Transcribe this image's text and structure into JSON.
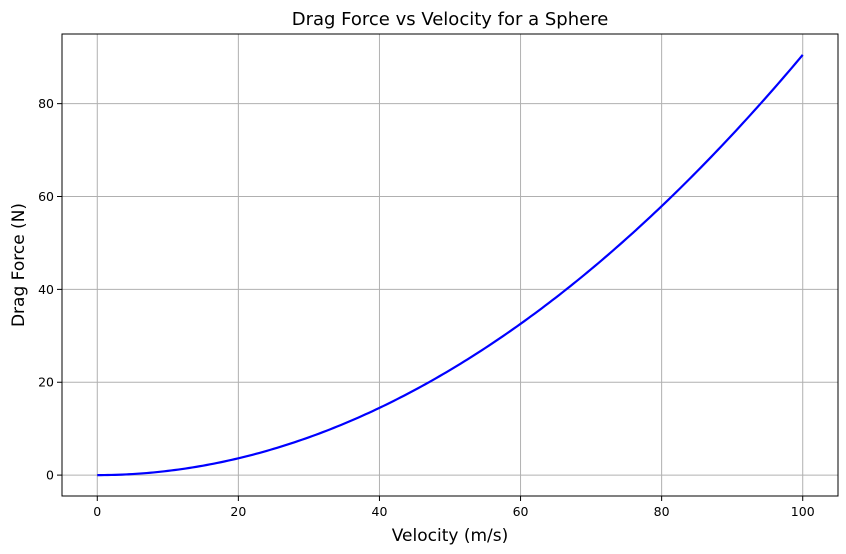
{
  "chart_data": {
    "type": "line",
    "title": "Drag Force vs Velocity for a Sphere",
    "xlabel": "Velocity (m/s)",
    "ylabel": "Drag Force (N)",
    "xlim": [
      -5,
      105
    ],
    "ylim": [
      -4.5,
      95
    ],
    "xticks": [
      0,
      20,
      40,
      60,
      80,
      100
    ],
    "yticks": [
      0,
      20,
      40,
      60,
      80
    ],
    "grid": true,
    "series": [
      {
        "name": "Drag Force",
        "color": "#0000ff",
        "formula": "F = 0.00905 * v^2",
        "x": [
          0,
          10,
          20,
          30,
          40,
          50,
          60,
          70,
          80,
          90,
          100
        ],
        "y": [
          0,
          0.905,
          3.62,
          8.145,
          14.48,
          22.625,
          32.58,
          44.345,
          57.92,
          73.305,
          90.5
        ]
      }
    ]
  }
}
